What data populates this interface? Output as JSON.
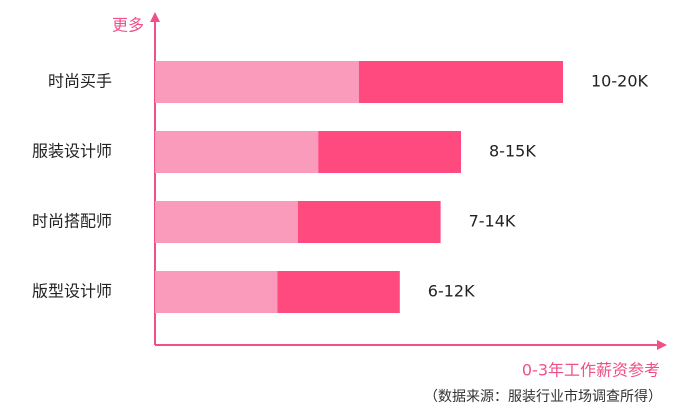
{
  "chart_data": {
    "type": "range-bar",
    "y_axis_label": "更多",
    "x_axis_label": "0-3年工作薪资参考",
    "source": "（数据来源：服装行业市场调查所得）",
    "categories": [
      "时尚买手",
      "服装设计师",
      "时尚搭配师",
      "版型设计师"
    ],
    "low": [
      10,
      8,
      7,
      6
    ],
    "high": [
      20,
      15,
      14,
      12
    ],
    "value_labels": [
      "10-20K",
      "8-15K",
      "7-14K",
      "6-12K"
    ],
    "low_color": "#fb9bbb",
    "high_color": "#ff4a80",
    "axis_color": "#f0508a",
    "xlim": [
      0,
      25
    ]
  }
}
